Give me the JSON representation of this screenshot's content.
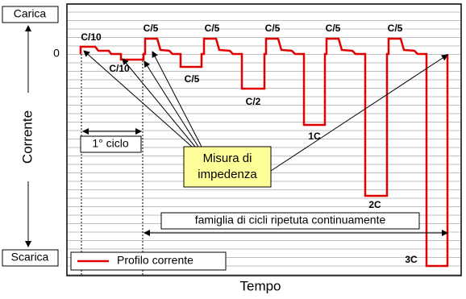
{
  "axes": {
    "y_top": "Carica",
    "y_bottom": "Scarica",
    "y_zero": "0",
    "y_title": "Corrente",
    "x_title": "Tempo"
  },
  "pulse_labels": [
    "C/10",
    "C/10",
    "C/5",
    "C/5",
    "C/5",
    "C/5",
    "C/5",
    "C/5",
    "C/2",
    "1C",
    "2C",
    "3C"
  ],
  "annotations": {
    "cycle": "1° ciclo",
    "impedance_line1": "Misura di",
    "impedance_line2": "impedenza",
    "family": "famiglia di cicli ripetuta continuamente"
  },
  "legend": "Profilo corrente"
}
